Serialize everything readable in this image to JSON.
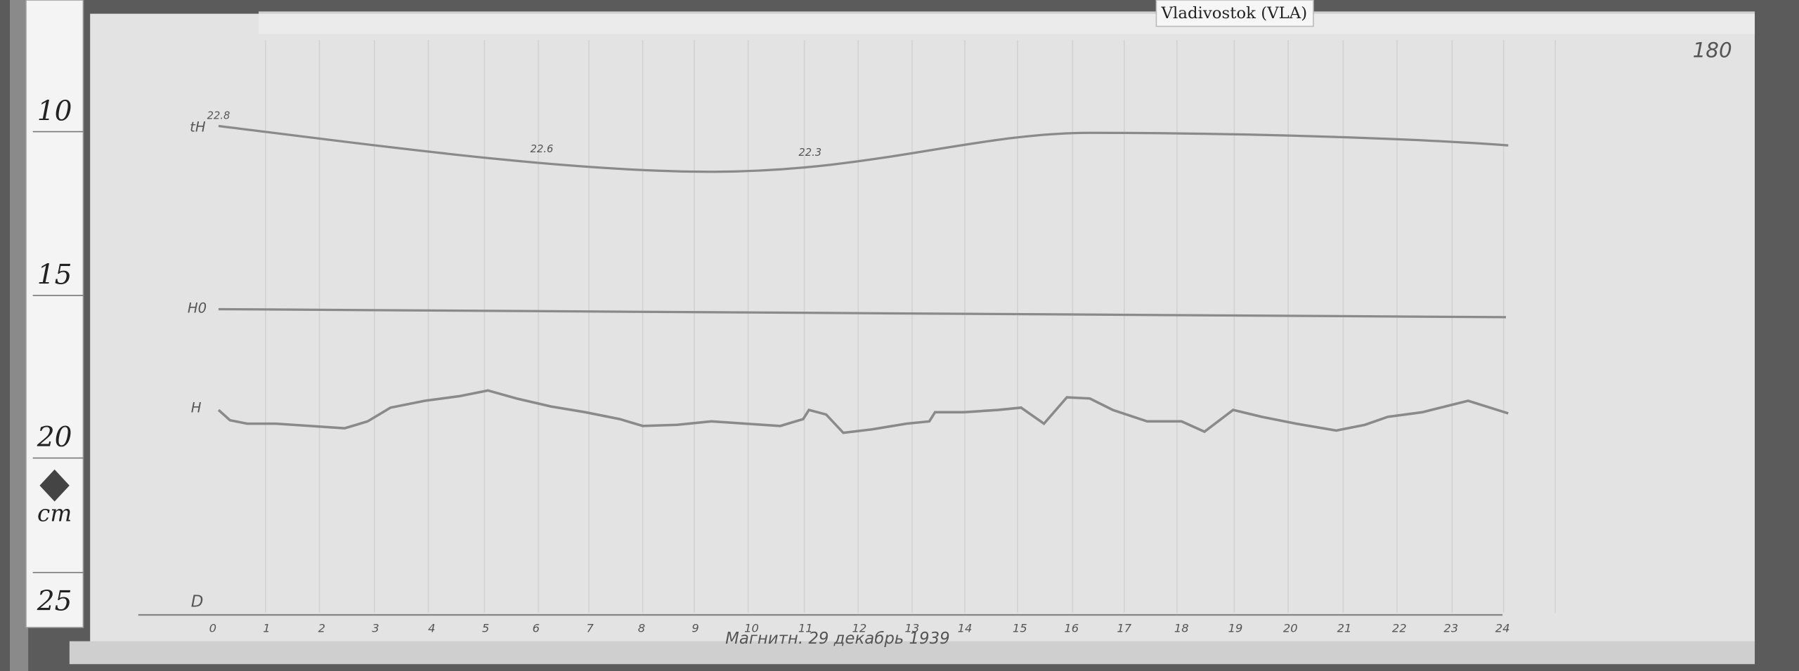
{
  "label_tab": "Vladivostok (VLA)",
  "sheet_number": "180",
  "ruler": {
    "labels": [
      "10",
      "15",
      "20",
      "cm",
      "25"
    ]
  },
  "traces": {
    "th_label": "tH",
    "th_readings": [
      "22.8",
      "22.6",
      "22.3"
    ],
    "h0_label": "H0",
    "h_label": "H",
    "d_label": "D"
  },
  "hours": [
    "0",
    "1",
    "2",
    "3",
    "4",
    "5",
    "6",
    "7",
    "8",
    "9",
    "10",
    "11",
    "12",
    "13",
    "14",
    "15",
    "16",
    "17",
    "18",
    "19",
    "20",
    "21",
    "22",
    "23",
    "24"
  ],
  "caption": "Магнитн. 29 декабрь 1939"
}
